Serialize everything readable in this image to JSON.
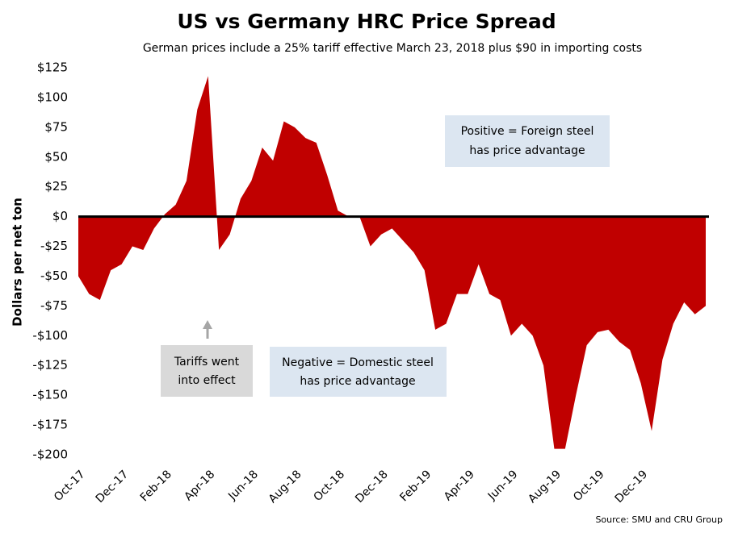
{
  "chart_data": {
    "type": "area",
    "title": "US vs Germany HRC Price Spread",
    "subtitle": "German prices include a 25% tariff effective March 23, 2018 plus $90 in importing costs",
    "y_label": "Dollars per net ton",
    "source": "Source: SMU and CRU Group",
    "color": "#c00000",
    "categories": [
      "Oct-17",
      null,
      null,
      null,
      "Dec-17",
      null,
      null,
      null,
      "Feb-18",
      null,
      null,
      null,
      "Apr-18",
      null,
      null,
      null,
      "Jun-18",
      null,
      null,
      null,
      "Aug-18",
      null,
      null,
      null,
      "Oct-18",
      null,
      null,
      null,
      "Dec-18",
      null,
      null,
      null,
      "Feb-19",
      null,
      null,
      null,
      "Apr-19",
      null,
      null,
      null,
      "Jun-19",
      null,
      null,
      null,
      "Aug-19",
      null,
      null,
      null,
      "Oct-19",
      null,
      null,
      null,
      "Dec-19",
      null,
      null,
      null,
      null,
      null,
      null
    ],
    "values": [
      -50,
      -65,
      -70,
      -45,
      -40,
      -25,
      -28,
      -10,
      2,
      10,
      30,
      90,
      118,
      -28,
      -15,
      15,
      30,
      58,
      47,
      80,
      75,
      66,
      62,
      35,
      5,
      0,
      0,
      -25,
      -15,
      -10,
      -20,
      -30,
      -45,
      -95,
      -90,
      -65,
      -65,
      -40,
      -65,
      -70,
      -100,
      -90,
      -100,
      -125,
      -195,
      -195,
      -150,
      -108,
      -97,
      -95,
      -105,
      -112,
      -140,
      -180,
      -120,
      -90,
      -72,
      -82,
      -75
    ],
    "ylim": [
      -200,
      125
    ],
    "yticks": [
      {
        "value": -200,
        "label": "-$200"
      },
      {
        "value": -175,
        "label": "-$175"
      },
      {
        "value": -150,
        "label": "-$150"
      },
      {
        "value": -125,
        "label": "-$125"
      },
      {
        "value": -100,
        "label": "-$100"
      },
      {
        "value": -75,
        "label": "-$75"
      },
      {
        "value": -50,
        "label": "-$50"
      },
      {
        "value": -25,
        "label": "-$25"
      },
      {
        "value": 0,
        "label": "$0"
      },
      {
        "value": 25,
        "label": "$25"
      },
      {
        "value": 50,
        "label": "$50"
      },
      {
        "value": 75,
        "label": "$75"
      },
      {
        "value": 100,
        "label": "$100"
      },
      {
        "value": 125,
        "label": "$125"
      }
    ],
    "grid": false,
    "annotations": [
      {
        "lines": [
          "Positive = Foreign steel",
          "has price advantage"
        ]
      },
      {
        "lines": [
          "Negative = Domestic steel",
          "has price advantage"
        ]
      },
      {
        "lines": [
          "Tariffs went",
          "into effect"
        ]
      }
    ]
  }
}
